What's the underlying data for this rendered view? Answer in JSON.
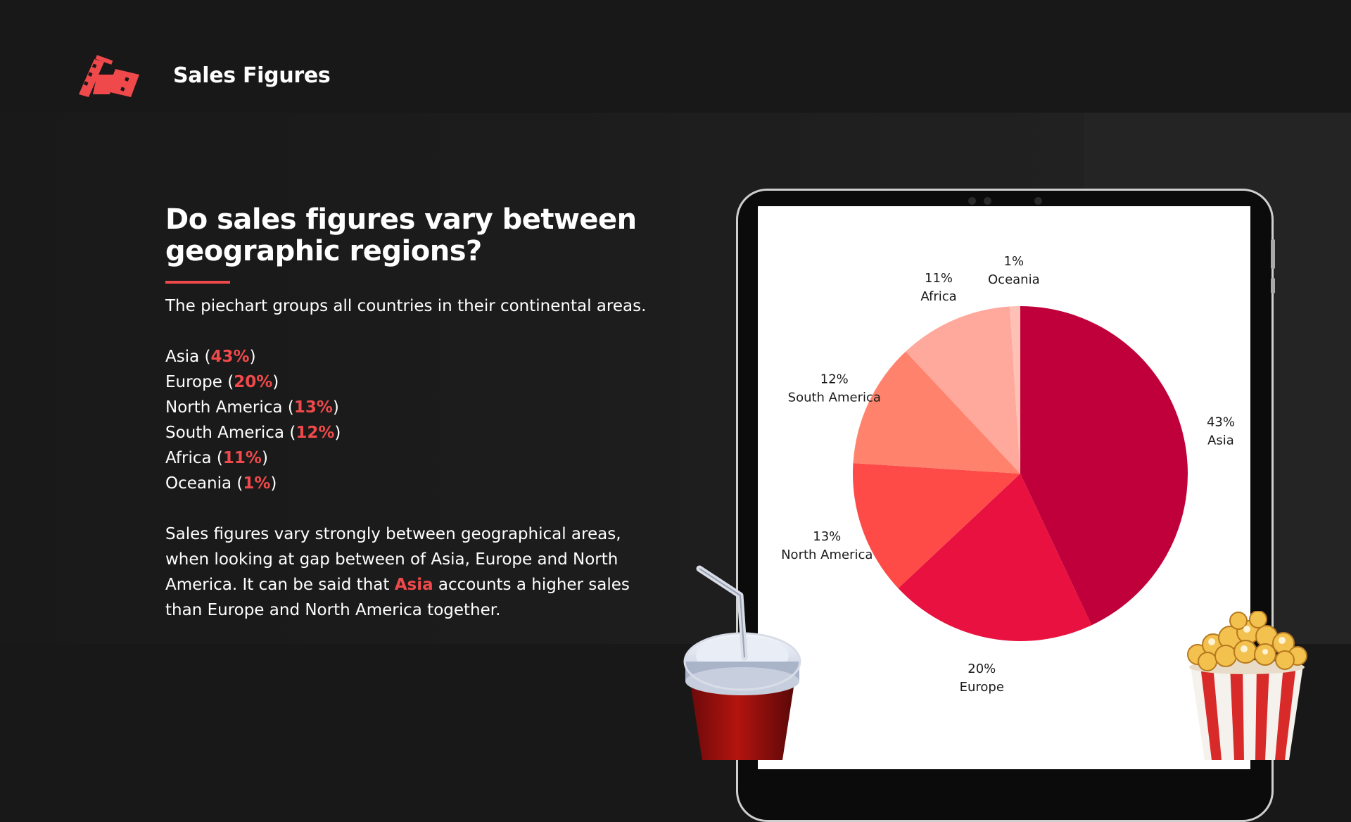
{
  "header": {
    "title": "Sales Figures",
    "logo_icon": "film-strip-icon"
  },
  "main": {
    "headline": "Do sales figures vary between geographic regions?",
    "description": "The piechart groups all countries in their continental areas.",
    "regions": [
      {
        "name": "Asia",
        "pct": "43%"
      },
      {
        "name": "Europe",
        "pct": "20%"
      },
      {
        "name": "North America",
        "pct": "13%"
      },
      {
        "name": "South America",
        "pct": "12%"
      },
      {
        "name": "Africa",
        "pct": "11%"
      },
      {
        "name": "Oceania",
        "pct": "1%"
      }
    ],
    "conclusion": {
      "before": "Sales figures vary strongly between geographical areas, when looking at gap between of Asia, Europe and North America. It can be said that ",
      "highlight": "Asia",
      "after": " accounts a higher sales than Europe and North America together."
    }
  },
  "colors": {
    "accent": "#f0494b",
    "background": "#181818"
  },
  "chart_data": {
    "type": "pie",
    "categories": [
      "Asia",
      "Europe",
      "North America",
      "South America",
      "Africa",
      "Oceania"
    ],
    "values": [
      43,
      20,
      13,
      12,
      11,
      1
    ],
    "labels": [
      "43%",
      "20%",
      "13%",
      "12%",
      "11%",
      "1%"
    ],
    "colors": [
      "#c0003a",
      "#e8113f",
      "#ff4b48",
      "#ff836c",
      "#ffa99d",
      "#ffc0b5"
    ],
    "title": ""
  },
  "decor": {
    "left_icon": "soda-cup-icon",
    "right_icon": "popcorn-icon"
  }
}
